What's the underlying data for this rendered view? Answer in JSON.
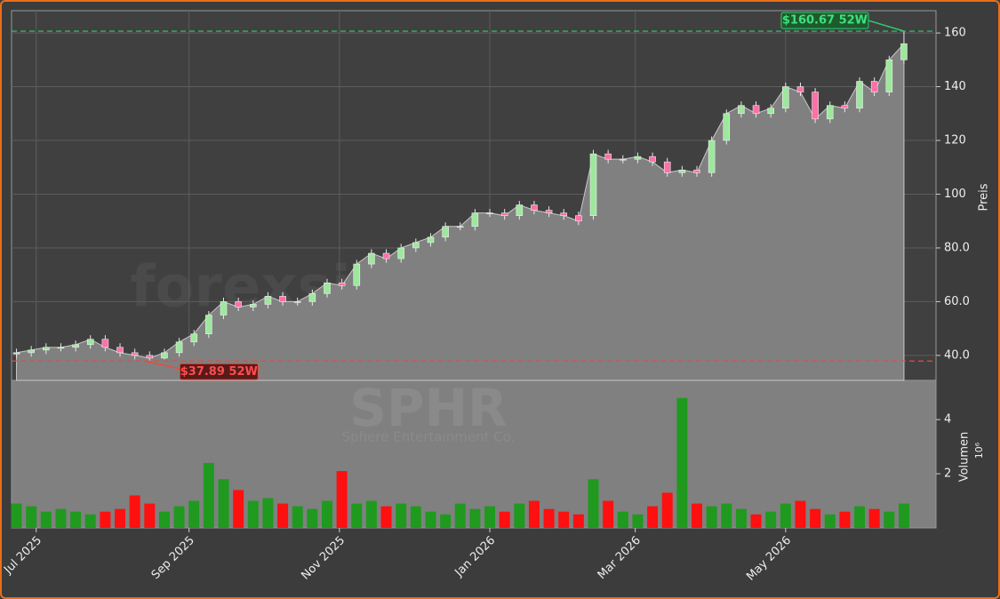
{
  "chart_data": {
    "type": "candlestick",
    "watermark": "forexsignale.trade",
    "symbol": "SPHR",
    "company": "Sphere Entertainment Co.",
    "y_label": "Preis",
    "volume_label": "Volumen",
    "volume_unit": "10⁶",
    "x": [
      22,
      28,
      34,
      40,
      46,
      52,
      58,
      64,
      70,
      76,
      82,
      88,
      94,
      100,
      106,
      112,
      118,
      124,
      130,
      136,
      142,
      148,
      154,
      160,
      166,
      172,
      178,
      184,
      190,
      196,
      202,
      208,
      214,
      220,
      226,
      232,
      238,
      244,
      250,
      256,
      262,
      268,
      274,
      280,
      286,
      292,
      298,
      304,
      310,
      316,
      322,
      328,
      334,
      340,
      346,
      352,
      358,
      364,
      370,
      376,
      382
    ],
    "open": [
      40.5,
      41,
      42,
      43,
      43,
      44,
      46,
      43,
      41,
      40,
      39,
      41,
      45,
      48,
      55,
      60,
      58,
      59,
      62,
      60,
      60,
      63,
      67,
      66,
      74,
      78,
      76,
      80,
      82,
      84,
      88,
      88,
      93,
      93,
      92,
      96,
      94,
      93,
      92,
      92,
      115,
      113,
      113,
      114,
      112,
      108,
      109,
      108,
      120,
      130,
      133,
      130,
      132,
      140,
      138,
      128,
      133,
      132,
      142,
      138,
      150
    ],
    "high": [
      42.5,
      43.5,
      44.5,
      44.5,
      45.5,
      47.5,
      47.5,
      44.5,
      42.5,
      41.5,
      42.5,
      46.5,
      49.5,
      56.5,
      61.5,
      61.5,
      60.5,
      63.5,
      63.5,
      61.5,
      64.5,
      68.5,
      68.5,
      75.5,
      79.5,
      79.5,
      81.5,
      83.5,
      85.5,
      89.5,
      89.5,
      94.5,
      94.5,
      94.5,
      97.5,
      97.5,
      95.5,
      94.5,
      93.5,
      116.5,
      116.5,
      114.5,
      115.5,
      115.5,
      113.5,
      110.5,
      110.5,
      121.5,
      131.5,
      134.5,
      134.5,
      133.5,
      141.5,
      141.5,
      139.5,
      134.5,
      134.5,
      143.5,
      143.5,
      151.5,
      160.67
    ],
    "low": [
      39,
      39.5,
      40.5,
      41.5,
      41.5,
      42.5,
      41.5,
      39.5,
      38.5,
      37.89,
      38.5,
      39.5,
      43.5,
      46.5,
      53.5,
      56.5,
      56.5,
      57.5,
      58.5,
      58.5,
      58.5,
      61.5,
      64.5,
      64.5,
      72.5,
      74.5,
      74.5,
      78.5,
      80.5,
      82.5,
      86.5,
      86.5,
      91.5,
      90.5,
      90.5,
      92.5,
      91.5,
      90.5,
      88.5,
      90.5,
      111.5,
      111.5,
      111.5,
      110.5,
      106.5,
      106.5,
      106.5,
      106.5,
      118.5,
      128.5,
      128.5,
      128.5,
      130.5,
      136.5,
      126.5,
      126.5,
      130.5,
      130.5,
      136.5,
      136.5,
      148.5
    ],
    "close": [
      41,
      42,
      43,
      43,
      44,
      46,
      43,
      41,
      40,
      39,
      41,
      45,
      48,
      55,
      60,
      58,
      59,
      62,
      60,
      60,
      63,
      67,
      66,
      74,
      78,
      76,
      80,
      82,
      84,
      88,
      88,
      93,
      93,
      92,
      96,
      94,
      93,
      92,
      90,
      115,
      113,
      113,
      114,
      112,
      108,
      109,
      108,
      120,
      130,
      133,
      130,
      132,
      140,
      138,
      128,
      133,
      132,
      142,
      138,
      150,
      156
    ],
    "volume": [
      0.9,
      0.8,
      0.6,
      0.7,
      0.6,
      0.5,
      0.6,
      0.7,
      1.2,
      0.9,
      0.6,
      0.8,
      1.0,
      2.4,
      1.8,
      1.4,
      1.0,
      1.1,
      0.9,
      0.8,
      0.7,
      1.0,
      2.1,
      0.9,
      1.0,
      0.8,
      0.9,
      0.8,
      0.6,
      0.5,
      0.9,
      0.7,
      0.8,
      0.6,
      0.9,
      1.0,
      0.7,
      0.6,
      0.5,
      1.8,
      1.0,
      0.6,
      0.5,
      0.8,
      1.3,
      4.8,
      0.9,
      0.8,
      0.9,
      0.7,
      0.5,
      0.6,
      0.9,
      1.0,
      0.7,
      0.5,
      0.6,
      0.8,
      0.7,
      0.6,
      0.9
    ],
    "up_color": "#9de89d",
    "down_color": "#ff6fa8",
    "volume_up_color": "#1f9a1f",
    "volume_down_color": "#ff1010",
    "high_label": "$160.67 52W",
    "low_label": "$37.89 52W",
    "xlim": [
      20,
      395
    ],
    "ylim": [
      30.7,
      168.3
    ],
    "volume_ylim": [
      0,
      5.45
    ],
    "xticks": [
      {
        "value": 30,
        "label": "Jul 2025"
      },
      {
        "value": 92,
        "label": "Sep 2025"
      },
      {
        "value": 153,
        "label": "Nov 2025"
      },
      {
        "value": 214,
        "label": "Jan 2026"
      },
      {
        "value": 273,
        "label": "Mar 2026"
      },
      {
        "value": 334,
        "label": "May 2026"
      }
    ],
    "yticks": [
      {
        "value": 40,
        "label": "40.0"
      },
      {
        "value": 60,
        "label": "60.0"
      },
      {
        "value": 80,
        "label": "80.0"
      },
      100,
      120,
      140,
      160
    ],
    "volume_yticks": [
      2,
      4
    ],
    "grid": true
  }
}
